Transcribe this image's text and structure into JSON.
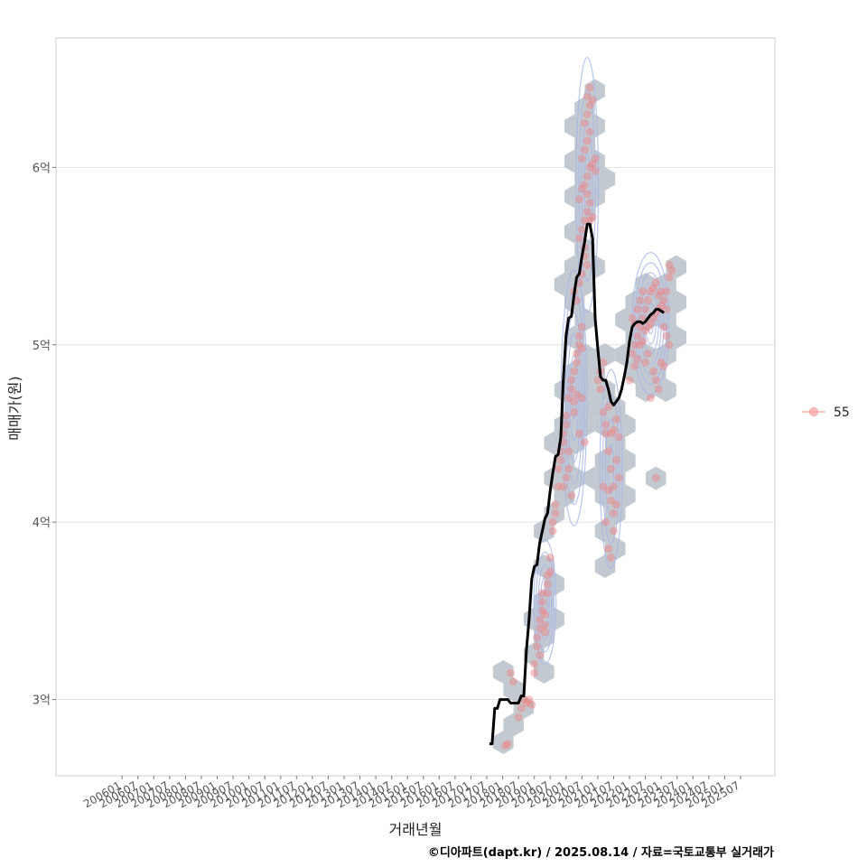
{
  "chart_data": {
    "type": "scatter",
    "xlabel": "거래년월",
    "ylabel": "매매가(원)",
    "caption": "©디아파트(dapt.kr) / 2025.08.14 / 자료=국토교통부 실거래가",
    "y_ticks": [
      {
        "value": 3,
        "label": "3억"
      },
      {
        "value": 4,
        "label": "4억"
      },
      {
        "value": 5,
        "label": "5억"
      },
      {
        "value": 6,
        "label": "6억"
      }
    ],
    "ylim": [
      2.57,
      6.73
    ],
    "x_ticks": [
      "200601",
      "200607",
      "200701",
      "200707",
      "200801",
      "200807",
      "200901",
      "200907",
      "201001",
      "201007",
      "201101",
      "201107",
      "201201",
      "201207",
      "201301",
      "201307",
      "201401",
      "201407",
      "201501",
      "201507",
      "201601",
      "201607",
      "201701",
      "201707",
      "201801",
      "201807",
      "201901",
      "201907",
      "202001",
      "202007",
      "202101",
      "202107",
      "202201",
      "202207",
      "202301",
      "202307",
      "202401",
      "202407",
      "202501",
      "202507"
    ],
    "grid": true,
    "legend": {
      "position": "right",
      "entries": [
        {
          "label": "55",
          "color": "#f28e8e"
        }
      ]
    },
    "colors": {
      "points": "#f08080",
      "hexbin": "#b8bfc8",
      "contour": "#a8b8e8",
      "trend": "#000000",
      "grid": "#e3e3e3",
      "frame": "#cccccc"
    },
    "trend_line": [
      [
        "201708",
        2.75
      ],
      [
        "201709",
        2.75
      ],
      [
        "201710",
        2.95
      ],
      [
        "201711",
        2.95
      ],
      [
        "201712",
        3.0
      ],
      [
        "201801",
        3.0
      ],
      [
        "201802",
        3.0
      ],
      [
        "201803",
        3.0
      ],
      [
        "201804",
        2.98
      ],
      [
        "201805",
        2.98
      ],
      [
        "201806",
        2.98
      ],
      [
        "201807",
        2.98
      ],
      [
        "201808",
        3.02
      ],
      [
        "201809",
        3.02
      ],
      [
        "201810",
        3.28
      ],
      [
        "201811",
        3.45
      ],
      [
        "201812",
        3.68
      ],
      [
        "201901",
        3.75
      ],
      [
        "201902",
        3.76
      ],
      [
        "201903",
        3.88
      ],
      [
        "201904",
        3.95
      ],
      [
        "201905",
        4.02
      ],
      [
        "201906",
        4.05
      ],
      [
        "201907",
        4.18
      ],
      [
        "201908",
        4.28
      ],
      [
        "201909",
        4.37
      ],
      [
        "201910",
        4.38
      ],
      [
        "201911",
        4.48
      ],
      [
        "201912",
        4.82
      ],
      [
        "202001",
        5.05
      ],
      [
        "202002",
        5.15
      ],
      [
        "202003",
        5.16
      ],
      [
        "202004",
        5.28
      ],
      [
        "202005",
        5.38
      ],
      [
        "202006",
        5.4
      ],
      [
        "202007",
        5.5
      ],
      [
        "202008",
        5.58
      ],
      [
        "202009",
        5.68
      ],
      [
        "202010",
        5.68
      ],
      [
        "202011",
        5.6
      ],
      [
        "202012",
        5.15
      ],
      [
        "202101",
        4.98
      ],
      [
        "202102",
        4.82
      ],
      [
        "202103",
        4.8
      ],
      [
        "202104",
        4.8
      ],
      [
        "202105",
        4.75
      ],
      [
        "202106",
        4.68
      ],
      [
        "202107",
        4.66
      ],
      [
        "202108",
        4.68
      ],
      [
        "202109",
        4.7
      ],
      [
        "202110",
        4.75
      ],
      [
        "202111",
        4.82
      ],
      [
        "202112",
        4.9
      ],
      [
        "202201",
        5.02
      ],
      [
        "202202",
        5.1
      ],
      [
        "202203",
        5.12
      ],
      [
        "202204",
        5.13
      ],
      [
        "202205",
        5.13
      ],
      [
        "202206",
        5.12
      ],
      [
        "202207",
        5.13
      ],
      [
        "202208",
        5.15
      ],
      [
        "202209",
        5.17
      ],
      [
        "202210",
        5.18
      ],
      [
        "202211",
        5.2
      ],
      [
        "202212",
        5.2
      ],
      [
        "202301",
        5.19
      ],
      [
        "202302",
        5.18
      ]
    ],
    "points": [
      [
        "201802",
        2.74
      ],
      [
        "201803",
        2.75
      ],
      [
        "201804",
        3.15
      ],
      [
        "201805",
        3.1
      ],
      [
        "201807",
        2.9
      ],
      [
        "201808",
        2.95
      ],
      [
        "201809",
        3.0
      ],
      [
        "201810",
        2.98
      ],
      [
        "201811",
        3.0
      ],
      [
        "201812",
        2.97
      ],
      [
        "201901",
        3.15
      ],
      [
        "201901",
        3.2
      ],
      [
        "201902",
        3.3
      ],
      [
        "201902",
        3.35
      ],
      [
        "201903",
        3.25
      ],
      [
        "201903",
        3.4
      ],
      [
        "201903",
        3.45
      ],
      [
        "201904",
        3.5
      ],
      [
        "201904",
        3.55
      ],
      [
        "201904",
        3.6
      ],
      [
        "201905",
        3.38
      ],
      [
        "201905",
        3.42
      ],
      [
        "201905",
        3.48
      ],
      [
        "201906",
        3.6
      ],
      [
        "201906",
        3.7
      ],
      [
        "201906",
        3.65
      ],
      [
        "201907",
        3.72
      ],
      [
        "201907",
        3.8
      ],
      [
        "201908",
        3.95
      ],
      [
        "201908",
        4.0
      ],
      [
        "201909",
        4.05
      ],
      [
        "201909",
        4.1
      ],
      [
        "201910",
        4.2
      ],
      [
        "201910",
        4.3
      ],
      [
        "201911",
        4.35
      ],
      [
        "201911",
        4.4
      ],
      [
        "201912",
        4.45
      ],
      [
        "201912",
        4.5
      ],
      [
        "202001",
        4.55
      ],
      [
        "202001",
        4.6
      ],
      [
        "202002",
        4.4
      ],
      [
        "202002",
        4.7
      ],
      [
        "202003",
        4.75
      ],
      [
        "202003",
        4.8
      ],
      [
        "202004",
        4.62
      ],
      [
        "202004",
        4.85
      ],
      [
        "202005",
        4.9
      ],
      [
        "202005",
        4.95
      ],
      [
        "202006",
        5.0
      ],
      [
        "202006",
        5.05
      ],
      [
        "202007",
        4.98
      ],
      [
        "202007",
        5.1
      ],
      [
        "202001",
        4.25
      ],
      [
        "202002",
        4.3
      ],
      [
        "202003",
        4.15
      ],
      [
        "201912",
        4.2
      ],
      [
        "202004",
        4.68
      ],
      [
        "202005",
        4.72
      ],
      [
        "202006",
        4.5
      ],
      [
        "202007",
        4.7
      ],
      [
        "202008",
        4.45
      ],
      [
        "202004",
        5.3
      ],
      [
        "202005",
        5.25
      ],
      [
        "202006",
        5.35
      ],
      [
        "202007",
        5.4
      ],
      [
        "202008",
        5.5
      ],
      [
        "202009",
        5.45
      ],
      [
        "202006",
        5.6
      ],
      [
        "202007",
        5.65
      ],
      [
        "202008",
        5.7
      ],
      [
        "202009",
        5.75
      ],
      [
        "202010",
        5.8
      ],
      [
        "202006",
        5.82
      ],
      [
        "202007",
        5.88
      ],
      [
        "202008",
        5.9
      ],
      [
        "202009",
        5.95
      ],
      [
        "202010",
        6.0
      ],
      [
        "202011",
        6.02
      ],
      [
        "202007",
        6.05
      ],
      [
        "202008",
        6.1
      ],
      [
        "202009",
        6.15
      ],
      [
        "202010",
        6.2
      ],
      [
        "202008",
        6.25
      ],
      [
        "202009",
        6.3
      ],
      [
        "202010",
        6.35
      ],
      [
        "202009",
        6.4
      ],
      [
        "202010",
        6.45
      ],
      [
        "202011",
        6.38
      ],
      [
        "202010",
        5.7
      ],
      [
        "202011",
        5.72
      ],
      [
        "202012",
        5.98
      ],
      [
        "202012",
        6.05
      ],
      [
        "202008",
        5.55
      ],
      [
        "202009",
        5.85
      ],
      [
        "202102",
        4.75
      ],
      [
        "202103",
        4.62
      ],
      [
        "202104",
        4.5
      ],
      [
        "202105",
        4.4
      ],
      [
        "202106",
        4.3
      ],
      [
        "202107",
        4.2
      ],
      [
        "202108",
        4.1
      ],
      [
        "202103",
        4.2
      ],
      [
        "202104",
        4.0
      ],
      [
        "202105",
        3.85
      ],
      [
        "202106",
        3.8
      ],
      [
        "202107",
        3.95
      ],
      [
        "202102",
        4.85
      ],
      [
        "202101",
        4.8
      ],
      [
        "202104",
        4.55
      ],
      [
        "202105",
        4.65
      ],
      [
        "202106",
        4.5
      ],
      [
        "202107",
        4.52
      ],
      [
        "202108",
        4.58
      ],
      [
        "202109",
        4.48
      ],
      [
        "202105",
        4.18
      ],
      [
        "202106",
        4.12
      ],
      [
        "202107",
        4.05
      ],
      [
        "202103",
        4.9
      ],
      [
        "202108",
        4.35
      ],
      [
        "202109",
        4.25
      ],
      [
        "202201",
        4.8
      ],
      [
        "202202",
        4.95
      ],
      [
        "202203",
        5.0
      ],
      [
        "202204",
        5.05
      ],
      [
        "202205",
        5.1
      ],
      [
        "202206",
        5.15
      ],
      [
        "202207",
        5.2
      ],
      [
        "202208",
        5.25
      ],
      [
        "202209",
        5.3
      ],
      [
        "202210",
        5.32
      ],
      [
        "202211",
        5.35
      ],
      [
        "202212",
        5.28
      ],
      [
        "202301",
        5.3
      ],
      [
        "202302",
        5.25
      ],
      [
        "202303",
        5.2
      ],
      [
        "202304",
        5.38
      ],
      [
        "202305",
        5.42
      ],
      [
        "202203",
        4.88
      ],
      [
        "202204",
        4.92
      ],
      [
        "202205",
        5.0
      ],
      [
        "202206",
        5.02
      ],
      [
        "202207",
        5.08
      ],
      [
        "202208",
        5.1
      ],
      [
        "202209",
        5.12
      ],
      [
        "202210",
        5.15
      ],
      [
        "202211",
        5.18
      ],
      [
        "202212",
        5.2
      ],
      [
        "202301",
        5.22
      ],
      [
        "202302",
        5.1
      ],
      [
        "202303",
        5.05
      ],
      [
        "202304",
        5.0
      ],
      [
        "202202",
        5.15
      ],
      [
        "202203",
        5.12
      ],
      [
        "202204",
        5.2
      ],
      [
        "202205",
        5.25
      ],
      [
        "202206",
        5.3
      ],
      [
        "202207",
        4.9
      ],
      [
        "202208",
        4.95
      ],
      [
        "202209",
        4.7
      ],
      [
        "202210",
        4.85
      ],
      [
        "202211",
        4.8
      ],
      [
        "202212",
        4.75
      ],
      [
        "202301",
        4.9
      ],
      [
        "202302",
        4.88
      ],
      [
        "202211",
        4.25
      ],
      [
        "202303",
        5.3
      ],
      [
        "202304",
        5.45
      ]
    ]
  }
}
